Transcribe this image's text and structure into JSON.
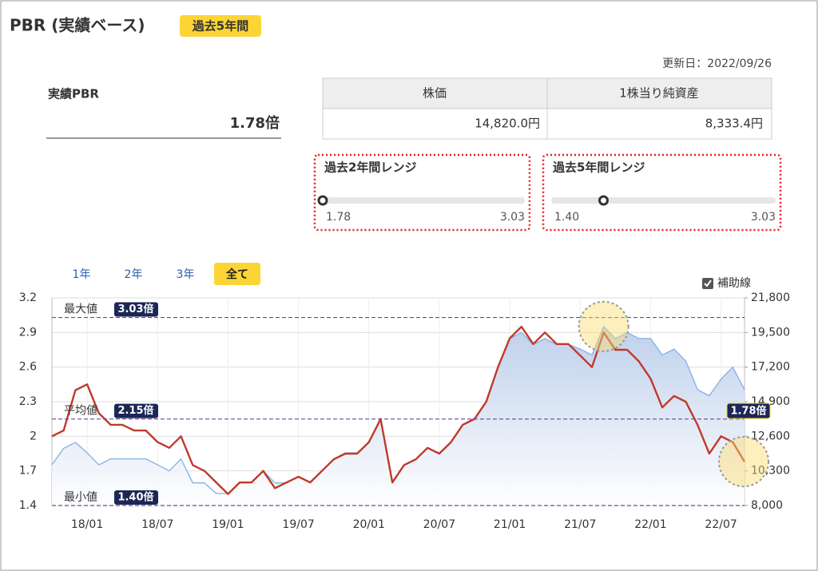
{
  "header": {
    "title": "PBR (実績ベース)",
    "badge": "過去5年間"
  },
  "updated": "更新日：2022/09/26",
  "pbr": {
    "caption": "実績PBR",
    "value": 1.78,
    "label": "1.78倍"
  },
  "table": {
    "headers": [
      "株価",
      "1株当り純資産"
    ],
    "rows": [
      [
        "14,820.0円",
        "8,333.4円"
      ]
    ]
  },
  "ranges": [
    {
      "title": "過去2年間レンジ",
      "min": 1.78,
      "max": 3.03
    },
    {
      "title": "過去5年間レンジ",
      "min": {
        "value": 1.4,
        "label": "1.40"
      },
      "max": 3.03
    }
  ],
  "periods": [
    "1年",
    "2年",
    "3年",
    "全て"
  ],
  "selected_period": "全て",
  "guide_lines": {
    "label": "補助線",
    "checked": true
  },
  "chart_data": {
    "type": "line",
    "x": [
      "17/10",
      "17/11",
      "17/12",
      "18/01",
      "18/02",
      "18/03",
      "18/04",
      "18/05",
      "18/06",
      "18/07",
      "18/08",
      "18/09",
      "18/10",
      "18/11",
      "18/12",
      "19/01",
      "19/02",
      "19/03",
      "19/04",
      "19/05",
      "19/06",
      "19/07",
      "19/08",
      "19/09",
      "19/10",
      "19/11",
      "19/12",
      "20/01",
      "20/02",
      "20/03",
      "20/04",
      "20/05",
      "20/06",
      "20/07",
      "20/08",
      "20/09",
      "20/10",
      "20/11",
      "20/12",
      "21/01",
      "21/02",
      "21/03",
      "21/04",
      "21/05",
      "21/06",
      "21/07",
      "21/08",
      "21/09",
      "21/10",
      "21/11",
      "21/12",
      "22/01",
      "22/02",
      "22/03",
      "22/04",
      "22/05",
      "22/06",
      "22/07",
      "22/08",
      "22/09"
    ],
    "xticks": [
      "18/01",
      "18/07",
      "19/01",
      "19/07",
      "20/01",
      "20/07",
      "21/01",
      "21/07",
      "22/01",
      "22/07"
    ],
    "series": [
      {
        "color": "#7fb0e6",
        "axis": "y2",
        "area": true,
        "values": [
          10700,
          11800,
          12200,
          11500,
          10700,
          11100,
          11100,
          11100,
          11100,
          10700,
          10300,
          11100,
          9500,
          9500,
          8800,
          8800,
          9500,
          9500,
          10300,
          9500,
          9500,
          9900,
          9500,
          10300,
          11100,
          11500,
          11500,
          12200,
          13800,
          9500,
          10700,
          11100,
          11800,
          11500,
          12200,
          13400,
          13800,
          14900,
          17200,
          19100,
          19500,
          18700,
          19100,
          18700,
          18700,
          18400,
          18000,
          19900,
          19100,
          19500,
          19100,
          19100,
          18000,
          18400,
          17600,
          15700,
          15300,
          16400,
          17200,
          15700
        ]
      },
      {
        "color": "#c0392b",
        "axis": "y",
        "values": [
          2.0,
          2.05,
          2.4,
          2.45,
          2.2,
          2.1,
          2.1,
          2.05,
          2.05,
          1.95,
          1.9,
          2.0,
          1.75,
          1.7,
          1.6,
          1.5,
          1.6,
          1.6,
          1.7,
          1.55,
          1.6,
          1.65,
          1.6,
          1.7,
          1.8,
          1.85,
          1.85,
          1.95,
          2.15,
          1.6,
          1.75,
          1.8,
          1.9,
          1.85,
          1.95,
          2.1,
          2.15,
          2.3,
          2.6,
          2.85,
          2.95,
          2.8,
          2.9,
          2.8,
          2.8,
          2.7,
          2.6,
          2.9,
          2.75,
          2.75,
          2.65,
          2.5,
          2.25,
          2.35,
          2.3,
          2.1,
          1.85,
          2.0,
          1.95,
          1.78
        ]
      }
    ],
    "ylim": [
      1.4,
      3.2
    ],
    "yticks": [
      1.4,
      1.7,
      2,
      2.3,
      2.6,
      2.9,
      3.2
    ],
    "y2lim": [
      8000,
      21800
    ],
    "y2ticks": [
      {
        "value": 8000,
        "label": "8,000"
      },
      {
        "value": 10300,
        "label": "10,300"
      },
      {
        "value": 12600,
        "label": "12,600"
      },
      {
        "value": 14900,
        "label": "14,900"
      },
      {
        "value": 17200,
        "label": "17,200"
      },
      {
        "value": 19500,
        "label": "19,500"
      },
      {
        "value": 21800,
        "label": "21,800"
      }
    ],
    "grid": true,
    "reference_lines": [
      {
        "name": "最大値",
        "value": 3.03,
        "label": "3.03倍"
      },
      {
        "name": "平均値",
        "value": 2.15,
        "label": "2.15倍"
      },
      {
        "name": "最小値",
        "value": 1.4,
        "label": "1.40倍"
      }
    ]
  }
}
